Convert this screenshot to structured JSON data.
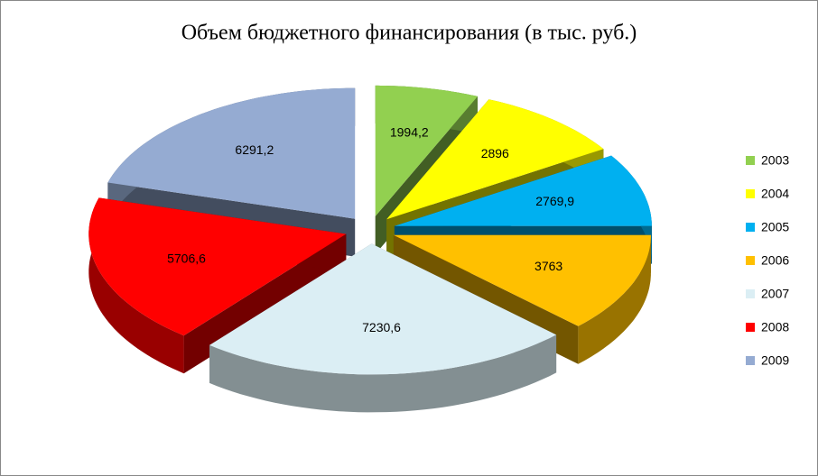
{
  "chart_data": {
    "type": "pie",
    "title": "Объем бюджетного финансирования (в тыс. руб.)",
    "categories": [
      "2003",
      "2004",
      "2005",
      "2006",
      "2007",
      "2008",
      "2009"
    ],
    "values": [
      1994.2,
      2896,
      2769.9,
      3763,
      7230.6,
      5706.6,
      6291.2
    ],
    "value_labels": [
      "1994,2",
      "2896",
      "2769,9",
      "3763",
      "7230,6",
      "5706,6",
      "6291,2"
    ],
    "colors": [
      "#92d050",
      "#ffff00",
      "#00b0f0",
      "#ffc000",
      "#dbeef4",
      "#ff0000",
      "#95abd2"
    ],
    "legend": "right"
  }
}
